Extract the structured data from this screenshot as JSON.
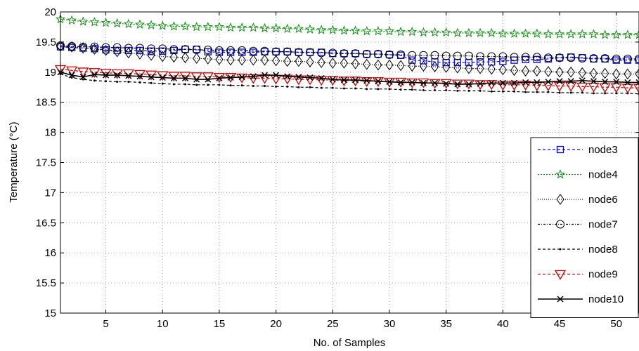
{
  "chart_data": {
    "type": "line",
    "xlabel": "No. of Samples",
    "ylabel": "Temperature (°C)",
    "xlim": [
      1,
      52
    ],
    "ylim": [
      15,
      20
    ],
    "xticks": [
      5,
      10,
      15,
      20,
      25,
      30,
      35,
      40,
      45,
      50
    ],
    "yticks": [
      15,
      15.5,
      16,
      16.5,
      17,
      17.5,
      18,
      18.5,
      19,
      19.5,
      20
    ],
    "grid": true,
    "legend_position": "right",
    "x": [
      1,
      2,
      3,
      4,
      5,
      6,
      7,
      8,
      9,
      10,
      11,
      12,
      13,
      14,
      15,
      16,
      17,
      18,
      19,
      20,
      21,
      22,
      23,
      24,
      25,
      26,
      27,
      28,
      29,
      30,
      31,
      32,
      33,
      34,
      35,
      36,
      37,
      38,
      39,
      40,
      41,
      42,
      43,
      44,
      45,
      46,
      47,
      48,
      49,
      50,
      51,
      52
    ],
    "series": [
      {
        "name": "node3",
        "color": "#0000ff",
        "dash": "4,3",
        "marker": "square",
        "values": [
          19.42,
          19.41,
          19.4,
          19.39,
          19.37,
          19.36,
          19.36,
          19.36,
          19.35,
          19.35,
          19.36,
          19.38,
          19.38,
          19.34,
          19.33,
          19.33,
          19.33,
          19.33,
          19.34,
          19.34,
          19.34,
          19.33,
          19.33,
          19.33,
          19.31,
          19.31,
          19.31,
          19.3,
          19.3,
          19.29,
          19.28,
          19.2,
          19.19,
          19.17,
          19.16,
          19.16,
          19.16,
          19.17,
          19.17,
          19.18,
          19.2,
          19.21,
          19.21,
          19.22,
          19.24,
          19.25,
          19.24,
          19.22,
          19.22,
          19.2,
          19.2,
          19.2
        ]
      },
      {
        "name": "node4",
        "color": "#109010",
        "dash": "2,2",
        "marker": "star",
        "values": [
          19.88,
          19.86,
          19.84,
          19.83,
          19.82,
          19.81,
          19.8,
          19.79,
          19.78,
          19.77,
          19.76,
          19.76,
          19.75,
          19.75,
          19.75,
          19.74,
          19.74,
          19.74,
          19.73,
          19.73,
          19.72,
          19.72,
          19.71,
          19.7,
          19.7,
          19.69,
          19.69,
          19.68,
          19.68,
          19.68,
          19.67,
          19.67,
          19.66,
          19.66,
          19.66,
          19.65,
          19.65,
          19.65,
          19.65,
          19.64,
          19.64,
          19.64,
          19.64,
          19.63,
          19.63,
          19.63,
          19.63,
          19.63,
          19.62,
          19.62,
          19.62,
          19.62
        ]
      },
      {
        "name": "node6",
        "color": "#000000",
        "dash": "1,2",
        "marker": "diamond",
        "values": [
          19.43,
          19.42,
          19.4,
          19.38,
          19.36,
          19.34,
          19.32,
          19.3,
          19.28,
          19.26,
          19.25,
          19.24,
          19.23,
          19.22,
          19.21,
          19.2,
          19.2,
          19.2,
          19.2,
          19.19,
          19.18,
          19.18,
          19.17,
          19.16,
          19.15,
          19.15,
          19.14,
          19.13,
          19.12,
          19.12,
          19.11,
          19.1,
          19.1,
          19.09,
          19.08,
          19.07,
          19.06,
          19.06,
          19.05,
          19.04,
          19.03,
          19.02,
          19.02,
          19.01,
          19.0,
          19.0,
          18.99,
          18.98,
          18.98,
          18.97,
          18.97,
          18.97
        ]
      },
      {
        "name": "node7",
        "color": "#000000",
        "dash": "3,2,1,2",
        "marker": "circle",
        "values": [
          19.44,
          19.43,
          19.42,
          19.42,
          19.41,
          19.41,
          19.4,
          19.4,
          19.39,
          19.39,
          19.38,
          19.38,
          19.37,
          19.37,
          19.36,
          19.36,
          19.36,
          19.35,
          19.35,
          19.34,
          19.34,
          19.33,
          19.33,
          19.32,
          19.32,
          19.31,
          19.31,
          19.3,
          19.3,
          19.29,
          19.29,
          19.28,
          19.28,
          19.28,
          19.27,
          19.27,
          19.27,
          19.26,
          19.26,
          19.26,
          19.25,
          19.25,
          19.25,
          19.24,
          19.24,
          19.24,
          19.23,
          19.23,
          19.23,
          19.22,
          19.22,
          19.22
        ]
      },
      {
        "name": "node8",
        "color": "#000000",
        "dash": "4,3",
        "marker": "dot",
        "values": [
          18.97,
          18.91,
          18.88,
          18.86,
          18.85,
          18.84,
          18.84,
          18.83,
          18.82,
          18.81,
          18.8,
          18.8,
          18.79,
          18.79,
          18.79,
          18.78,
          18.78,
          18.77,
          18.77,
          18.76,
          18.76,
          18.75,
          18.75,
          18.74,
          18.74,
          18.73,
          18.73,
          18.72,
          18.72,
          18.72,
          18.71,
          18.71,
          18.7,
          18.7,
          18.7,
          18.69,
          18.69,
          18.69,
          18.68,
          18.68,
          18.68,
          18.67,
          18.67,
          18.67,
          18.66,
          18.66,
          18.66,
          18.65,
          18.65,
          18.65,
          18.65,
          18.64
        ]
      },
      {
        "name": "node9",
        "color": "#d00000",
        "dash": "4,3",
        "marker": "triangle-down",
        "values": [
          19.05,
          19.03,
          19.01,
          19.0,
          18.99,
          18.98,
          18.98,
          18.97,
          18.96,
          18.95,
          18.94,
          18.94,
          18.93,
          18.93,
          18.92,
          18.92,
          18.91,
          18.9,
          18.9,
          18.89,
          18.89,
          18.88,
          18.88,
          18.87,
          18.87,
          18.86,
          18.86,
          18.85,
          18.85,
          18.84,
          18.84,
          18.83,
          18.83,
          18.82,
          18.82,
          18.81,
          18.81,
          18.8,
          18.8,
          18.79,
          18.79,
          18.79,
          18.78,
          18.78,
          18.77,
          18.77,
          18.76,
          18.76,
          18.75,
          18.75,
          18.74,
          18.74
        ]
      },
      {
        "name": "node10",
        "color": "#000000",
        "dash": "",
        "marker": "x",
        "values": [
          19.0,
          18.95,
          18.92,
          18.96,
          18.95,
          18.95,
          18.94,
          18.93,
          18.92,
          18.91,
          18.9,
          18.9,
          18.88,
          18.88,
          18.9,
          18.91,
          18.92,
          18.93,
          18.95,
          18.95,
          18.93,
          18.92,
          18.91,
          18.9,
          18.88,
          18.87,
          18.87,
          18.86,
          18.85,
          18.84,
          18.83,
          18.83,
          18.82,
          18.82,
          18.81,
          18.8,
          18.8,
          18.81,
          18.82,
          18.82,
          18.82,
          18.83,
          18.83,
          18.84,
          18.85,
          18.85,
          18.86,
          18.85,
          18.84,
          18.84,
          18.83,
          18.83
        ]
      }
    ]
  }
}
